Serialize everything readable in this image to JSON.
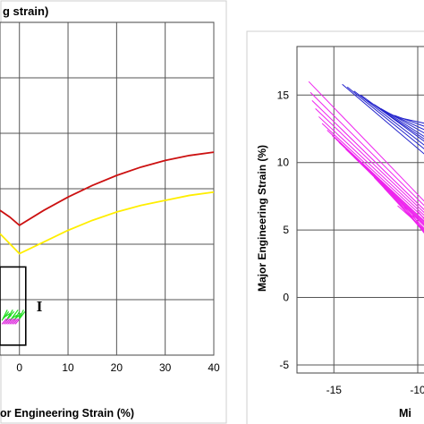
{
  "chart_data": [
    {
      "type": "line",
      "title": "g strain)",
      "xlabel": "or Engineering Strain (%)",
      "x_ticks": [
        0,
        10,
        20,
        30,
        40
      ],
      "xlim": [
        -4,
        40
      ],
      "ylim": [
        0,
        100
      ],
      "grid": true,
      "region_label": "I",
      "series": [
        {
          "color": "#cc1111",
          "x": [
            -4,
            -2,
            0,
            5,
            10,
            15,
            20,
            25,
            30,
            35,
            40
          ],
          "y": [
            43.5,
            41.5,
            39.0,
            43.5,
            47.5,
            51.0,
            54.0,
            56.5,
            58.5,
            60.0,
            61.0
          ]
        },
        {
          "color": "#ffee00",
          "x": [
            -4,
            -2,
            0,
            5,
            10,
            15,
            20,
            25,
            30,
            35,
            40
          ],
          "y": [
            36.5,
            33.5,
            30.5,
            34.0,
            37.5,
            40.5,
            43.0,
            45.0,
            46.5,
            48.0,
            49.0
          ]
        }
      ],
      "region_box": {
        "x": [
          -4,
          1.3
        ],
        "y": [
          3,
          26.5
        ]
      },
      "colors": {
        "green_cluster": "#22dd22",
        "magenta_cluster": "#dd22dd"
      }
    },
    {
      "type": "scatter",
      "title": "",
      "xlabel": "Mi",
      "ylabel": "Major Engineering Strain (%)",
      "x_ticks": [
        -15,
        -10
      ],
      "y_ticks": [
        -5,
        0,
        5,
        10,
        15
      ],
      "xlim": [
        -17.2,
        -9.2
      ],
      "ylim": [
        -5.6,
        18.6
      ],
      "grid": true,
      "series": [
        {
          "color": "#2222cc",
          "segments": [
            [
              [
                -14.5,
                15.8
              ],
              [
                -9.2,
                10.2
              ]
            ],
            [
              [
                -14.2,
                15.6
              ],
              [
                -9.2,
                10.6
              ]
            ],
            [
              [
                -13.8,
                15.3
              ],
              [
                -9.2,
                10.9
              ]
            ],
            [
              [
                -13.4,
                15.0
              ],
              [
                -9.2,
                11.2
              ]
            ],
            [
              [
                -13.0,
                14.6
              ],
              [
                -9.2,
                11.4
              ]
            ],
            [
              [
                -12.6,
                14.3
              ],
              [
                -9.2,
                11.6
              ]
            ],
            [
              [
                -12.2,
                14.0
              ],
              [
                -9.2,
                11.9
              ]
            ],
            [
              [
                -11.8,
                13.7
              ],
              [
                -9.2,
                12.2
              ]
            ],
            [
              [
                -11.4,
                13.5
              ],
              [
                -9.2,
                12.5
              ]
            ],
            [
              [
                -11.0,
                13.3
              ],
              [
                -9.2,
                12.8
              ]
            ]
          ]
        },
        {
          "color": "#ee22ee",
          "segments": [
            [
              [
                -16.5,
                16.0
              ],
              [
                -9.2,
                6.6
              ]
            ],
            [
              [
                -16.4,
                15.2
              ],
              [
                -9.2,
                6.3
              ]
            ],
            [
              [
                -16.3,
                14.6
              ],
              [
                -9.2,
                6.0
              ]
            ],
            [
              [
                -16.1,
                14.0
              ],
              [
                -9.2,
                5.8
              ]
            ],
            [
              [
                -15.9,
                13.4
              ],
              [
                -9.2,
                5.6
              ]
            ],
            [
              [
                -15.7,
                12.9
              ],
              [
                -9.2,
                5.4
              ]
            ],
            [
              [
                -15.4,
                12.4
              ],
              [
                -9.2,
                5.2
              ]
            ],
            [
              [
                -15.1,
                12.0
              ],
              [
                -9.2,
                5.1
              ]
            ],
            [
              [
                -14.7,
                11.5
              ],
              [
                -9.2,
                5.0
              ]
            ],
            [
              [
                -14.3,
                11.0
              ],
              [
                -9.2,
                4.9
              ]
            ],
            [
              [
                -13.8,
                10.4
              ],
              [
                -9.2,
                4.8
              ]
            ],
            [
              [
                -13.2,
                9.7
              ],
              [
                -9.2,
                4.6
              ]
            ],
            [
              [
                -12.6,
                8.9
              ],
              [
                -9.2,
                4.4
              ]
            ],
            [
              [
                -12.0,
                8.1
              ],
              [
                -9.2,
                4.3
              ]
            ],
            [
              [
                -11.4,
                7.4
              ],
              [
                -9.2,
                4.2
              ]
            ],
            [
              [
                -10.8,
                6.7
              ],
              [
                -9.2,
                4.1
              ]
            ],
            [
              [
                -10.3,
                6.1
              ],
              [
                -9.2,
                4.0
              ]
            ],
            [
              [
                -11.2,
                6.8
              ],
              [
                -9.2,
                4.6
              ]
            ],
            [
              [
                -10.0,
                6.4
              ],
              [
                -9.2,
                5.2
              ]
            ]
          ]
        }
      ]
    }
  ]
}
